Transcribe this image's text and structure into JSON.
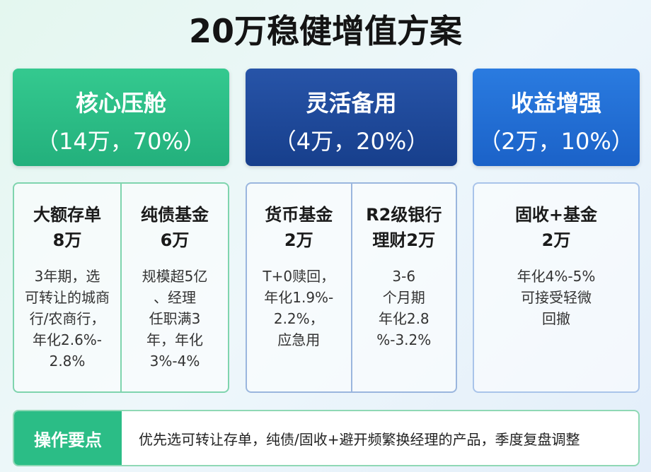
{
  "title": "20万稳健增值方案",
  "groups": [
    {
      "name": "核心压舱",
      "share": "（14万，70%）",
      "items": [
        {
          "heading": [
            "大额存单",
            "8万"
          ],
          "desc": [
            "3年期，选",
            "可转让的城商",
            "行/农商行，",
            "年化2.6%-",
            "2.8%"
          ]
        },
        {
          "heading": [
            "纯债基金",
            "6万"
          ],
          "desc": [
            "规模超5亿",
            "、经理",
            "任职满3",
            "年，年化",
            "3%-4%"
          ]
        }
      ]
    },
    {
      "name": "灵活备用",
      "share": "（4万，20%）",
      "items": [
        {
          "heading": [
            "货币基金",
            "2万"
          ],
          "desc": [
            "T+0赎回，",
            "年化1.9%-",
            "2.2%，",
            "应急用"
          ]
        },
        {
          "heading": [
            "R2级银行",
            "理财2万"
          ],
          "desc": [
            "3-6",
            "个月期",
            "年化2.8",
            "%-3.2%"
          ]
        }
      ]
    },
    {
      "name": "收益增强",
      "share": "（2万，10%）",
      "items": [
        {
          "heading": [
            "固收+基金",
            "2万"
          ],
          "desc": [
            "年化4%-5%",
            "可接受轻微",
            "回撤"
          ]
        }
      ]
    }
  ],
  "tips": {
    "label": "操作要点",
    "text": "优先选可转让存单，纯债/固收+避开频繁换经理的产品，季度复盘调整"
  }
}
